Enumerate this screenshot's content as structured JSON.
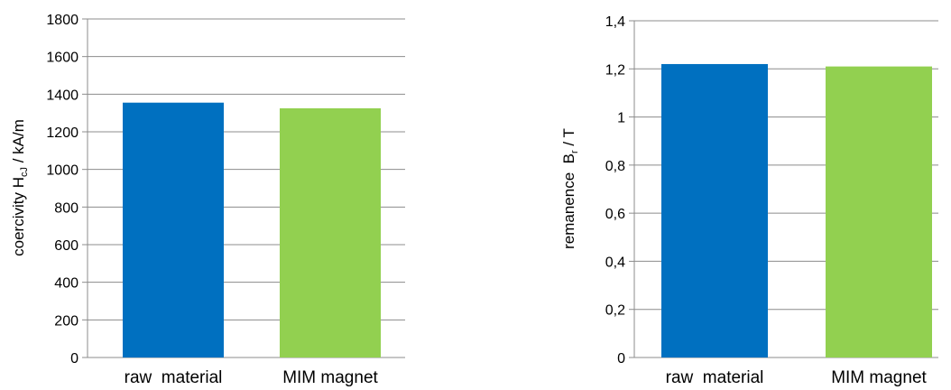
{
  "chart_data": [
    {
      "type": "bar",
      "categories": [
        "raw  material",
        "MIM magnet"
      ],
      "values": [
        1355,
        1325
      ],
      "bar_colors": [
        "#0070c0",
        "#92d050"
      ],
      "ylabel": {
        "prefix": "coercivity H",
        "subscript": "cJ",
        "suffix": " / kA/m"
      },
      "ylim": [
        0,
        1800
      ],
      "yticks": [
        "0",
        "200",
        "400",
        "600",
        "800",
        "1000",
        "1200",
        "1400",
        "1600",
        "1800"
      ],
      "grid": true,
      "legend": "none"
    },
    {
      "type": "bar",
      "categories": [
        "raw  material",
        "MIM magnet"
      ],
      "values": [
        1.22,
        1.21
      ],
      "bar_colors": [
        "#0070c0",
        "#92d050"
      ],
      "ylabel": {
        "prefix": "remanence  B",
        "subscript": "r",
        "suffix": " / T"
      },
      "ylim": [
        0,
        1.4
      ],
      "yticks": [
        "0",
        "0,2",
        "0,4",
        "0,6",
        "0,8",
        "1",
        "1,2",
        "1,4"
      ],
      "grid": true,
      "legend": "none"
    }
  ]
}
